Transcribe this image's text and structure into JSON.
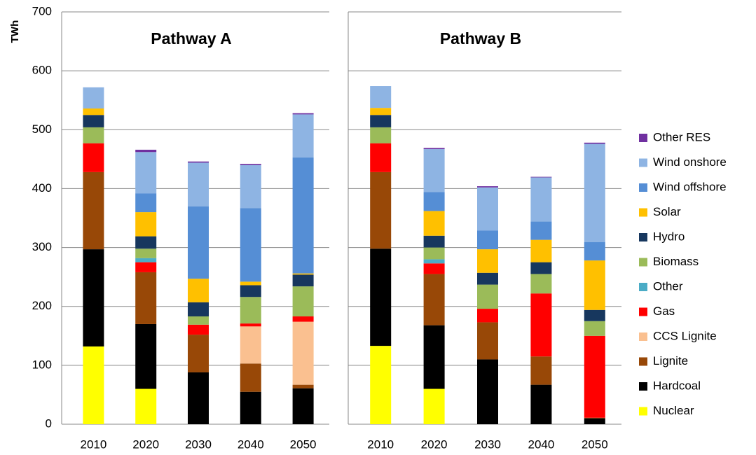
{
  "chart_data": [
    {
      "type": "bar",
      "stacked": true,
      "title": "Pathway A",
      "y_label": "TWh",
      "categories": [
        "2010",
        "2020",
        "2030",
        "2040",
        "2050"
      ],
      "ylim": [
        0,
        700
      ],
      "yticks": [
        0,
        100,
        200,
        300,
        400,
        500,
        600,
        700
      ],
      "grid": true,
      "series": [
        {
          "name": "Nuclear",
          "color": "#ffff00",
          "values": [
            132,
            60,
            0,
            0,
            0
          ]
        },
        {
          "name": "Hardcoal",
          "color": "#000000",
          "values": [
            165,
            110,
            88,
            55,
            61
          ]
        },
        {
          "name": "Lignite",
          "color": "#984807",
          "values": [
            131,
            88,
            64,
            48,
            6
          ]
        },
        {
          "name": "CCS Lignite",
          "color": "#fac090",
          "values": [
            0,
            0,
            0,
            63,
            107
          ]
        },
        {
          "name": "Gas",
          "color": "#ff0000",
          "values": [
            49,
            17,
            17,
            5,
            9
          ]
        },
        {
          "name": "Other",
          "color": "#4bacc6",
          "values": [
            0,
            7,
            0,
            0,
            0
          ]
        },
        {
          "name": "Biomass",
          "color": "#9bbb59",
          "values": [
            27,
            16,
            14,
            45,
            51
          ]
        },
        {
          "name": "Hydro",
          "color": "#17375e",
          "values": [
            21,
            21,
            24,
            20,
            20
          ]
        },
        {
          "name": "Solar",
          "color": "#ffc000",
          "values": [
            11,
            41,
            40,
            6,
            2
          ]
        },
        {
          "name": "Wind offshore",
          "color": "#558ed5",
          "values": [
            0,
            32,
            123,
            125,
            197
          ]
        },
        {
          "name": "Wind onshore",
          "color": "#8eb4e3",
          "values": [
            36,
            70,
            74,
            73,
            73
          ]
        },
        {
          "name": "Other RES",
          "color": "#7030a0",
          "values": [
            0,
            4,
            2,
            2,
            2
          ]
        }
      ]
    },
    {
      "type": "bar",
      "stacked": true,
      "title": "Pathway B",
      "categories": [
        "2010",
        "2020",
        "2030",
        "2040",
        "2050"
      ],
      "ylim": [
        0,
        700
      ],
      "yticks": [
        0,
        100,
        200,
        300,
        400,
        500,
        600,
        700
      ],
      "grid": true,
      "series": [
        {
          "name": "Nuclear",
          "color": "#ffff00",
          "values": [
            133,
            60,
            0,
            0,
            0
          ]
        },
        {
          "name": "Hardcoal",
          "color": "#000000",
          "values": [
            165,
            108,
            110,
            67,
            10
          ]
        },
        {
          "name": "Lignite",
          "color": "#984807",
          "values": [
            130,
            87,
            63,
            48,
            1
          ]
        },
        {
          "name": "CCS Lignite",
          "color": "#fac090",
          "values": [
            0,
            0,
            0,
            0,
            0
          ]
        },
        {
          "name": "Gas",
          "color": "#ff0000",
          "values": [
            49,
            18,
            23,
            107,
            139
          ]
        },
        {
          "name": "Other",
          "color": "#4bacc6",
          "values": [
            0,
            7,
            0,
            0,
            0
          ]
        },
        {
          "name": "Biomass",
          "color": "#9bbb59",
          "values": [
            27,
            20,
            41,
            33,
            25
          ]
        },
        {
          "name": "Hydro",
          "color": "#17375e",
          "values": [
            21,
            20,
            20,
            20,
            19
          ]
        },
        {
          "name": "Solar",
          "color": "#ffc000",
          "values": [
            12,
            42,
            40,
            38,
            84
          ]
        },
        {
          "name": "Wind offshore",
          "color": "#558ed5",
          "values": [
            0,
            32,
            32,
            31,
            31
          ]
        },
        {
          "name": "Wind onshore",
          "color": "#8eb4e3",
          "values": [
            37,
            73,
            73,
            75,
            167
          ]
        },
        {
          "name": "Other RES",
          "color": "#7030a0",
          "values": [
            0,
            2,
            2,
            1,
            2
          ]
        }
      ]
    }
  ]
}
